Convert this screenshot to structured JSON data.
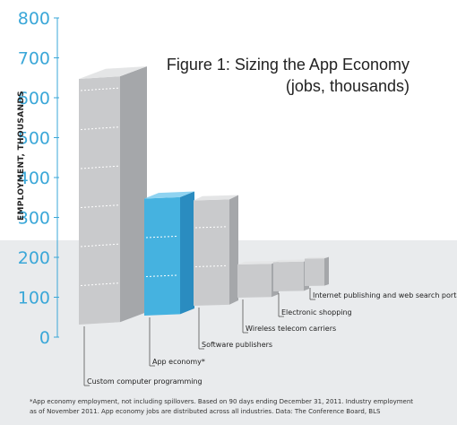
{
  "chart_data": {
    "type": "bar",
    "title_line1": "Figure 1: Sizing the App Economy",
    "title_line2": "(jobs, thousands)",
    "ylabel": "EMPLOYMENT, THOUSANDS",
    "ylim": [
      0,
      800
    ],
    "yticks": [
      "0",
      "100",
      "200",
      "300",
      "400",
      "500",
      "600",
      "700",
      "800"
    ],
    "categories": [
      "Custom computer programming",
      "App economy*",
      "Software publishers",
      "Wireless telecom carriers",
      "Electronic shopping",
      "Internet publishing and web search portals"
    ],
    "values": [
      630,
      300,
      270,
      85,
      75,
      70
    ],
    "highlight_index": 1,
    "colors": {
      "bar_front": "#c9cacc",
      "bar_side": "#a5a7aa",
      "bar_top": "#e4e5e6",
      "highlight_front": "#45b2e0",
      "highlight_side": "#2a8cc0",
      "highlight_top": "#8fd3f1",
      "axis": "#3aa7d8",
      "floor": "#e9ebed"
    },
    "footnote_line1": "*App economy employment, not including spillovers. Based on 90 days ending December 31, 2011. Industry employment",
    "footnote_line2": "as of November 2011. App economy jobs are distributed across all industries. Data: The Conference Board, BLS"
  }
}
